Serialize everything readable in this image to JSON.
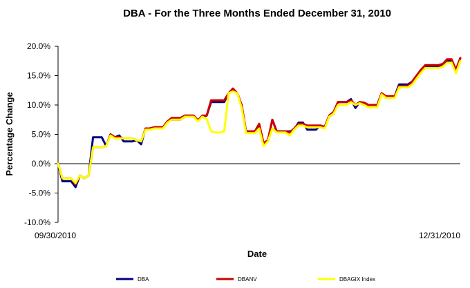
{
  "chart_data": {
    "type": "line",
    "title": "DBA - For the Three Months Ended December 31, 2010",
    "xlabel": "Date",
    "ylabel": "Percentage Change",
    "x_tick_labels": [
      "09/30/2010",
      "12/31/2010"
    ],
    "y_tick_labels": [
      "20.0%",
      "15.0%",
      "10.0%",
      "5.0%",
      "0.0%",
      "-5.0%",
      "-10.0%"
    ],
    "ylim": [
      -10,
      20
    ],
    "y_ticks": [
      20,
      15,
      10,
      5,
      0,
      -5,
      -10
    ],
    "grid": false,
    "legend": "bottom",
    "series": [
      {
        "name": "DBA",
        "color": "#000080",
        "values": [
          0.0,
          -3.0,
          -3.0,
          -3.0,
          -4.0,
          -2.0,
          -2.5,
          -2.0,
          4.5,
          4.5,
          4.5,
          3.0,
          5.0,
          4.5,
          4.8,
          3.8,
          3.8,
          3.8,
          4.0,
          3.3,
          6.0,
          6.0,
          6.2,
          6.2,
          6.2,
          7.2,
          7.5,
          7.5,
          7.5,
          8.0,
          8.0,
          8.0,
          7.4,
          8.0,
          8.2,
          10.5,
          10.5,
          10.5,
          10.5,
          12.0,
          12.5,
          12.0,
          9.8,
          5.5,
          5.5,
          5.5,
          6.5,
          3.5,
          4.0,
          7.5,
          5.5,
          5.5,
          5.5,
          5.5,
          5.8,
          7.0,
          7.0,
          5.8,
          5.8,
          5.8,
          6.5,
          6.2,
          8.0,
          8.5,
          10.5,
          10.5,
          10.5,
          11.0,
          9.5,
          10.5,
          10.3,
          10.0,
          10.0,
          10.0,
          12.0,
          11.2,
          11.2,
          11.5,
          13.5,
          13.5,
          13.5,
          14.0,
          15.0,
          16.0,
          16.5,
          16.5,
          16.5,
          16.5,
          17.0,
          17.5,
          17.5,
          16.0,
          18.0
        ]
      },
      {
        "name": "DBANV",
        "color": "#cc0000",
        "values": [
          0.0,
          -2.5,
          -2.5,
          -2.5,
          -3.5,
          -2.0,
          -2.5,
          -2.0,
          2.8,
          2.8,
          2.8,
          3.0,
          5.0,
          4.5,
          4.5,
          4.3,
          4.3,
          4.3,
          4.0,
          3.8,
          6.0,
          6.0,
          6.2,
          6.2,
          6.2,
          7.2,
          7.8,
          7.8,
          7.8,
          8.2,
          8.2,
          8.2,
          7.4,
          8.2,
          8.2,
          10.8,
          10.8,
          10.8,
          10.8,
          12.0,
          12.8,
          12.0,
          10.0,
          5.5,
          5.5,
          5.5,
          6.8,
          3.5,
          4.0,
          7.5,
          5.5,
          5.5,
          5.5,
          5.3,
          6.0,
          6.8,
          6.8,
          6.5,
          6.5,
          6.5,
          6.5,
          6.3,
          8.2,
          8.8,
          10.5,
          10.5,
          10.5,
          10.8,
          10.0,
          10.5,
          10.4,
          10.0,
          10.0,
          10.0,
          12.0,
          11.5,
          11.5,
          11.5,
          13.2,
          13.2,
          13.2,
          14.0,
          15.0,
          16.0,
          16.8,
          16.8,
          16.8,
          16.8,
          17.0,
          17.8,
          17.8,
          16.0,
          18.0
        ]
      },
      {
        "name": "DBAGIX Index",
        "color": "#ffff00",
        "values": [
          0.0,
          -2.5,
          -2.5,
          -2.5,
          -3.3,
          -2.0,
          -2.5,
          -2.0,
          2.8,
          2.8,
          2.8,
          3.0,
          4.8,
          4.3,
          4.3,
          4.3,
          4.3,
          4.3,
          4.0,
          3.8,
          5.8,
          5.8,
          6.0,
          6.0,
          6.0,
          7.0,
          7.5,
          7.5,
          7.5,
          8.0,
          8.0,
          8.0,
          7.2,
          8.0,
          7.6,
          5.5,
          5.3,
          5.3,
          5.5,
          12.0,
          12.3,
          12.0,
          9.5,
          5.2,
          5.2,
          5.2,
          6.0,
          3.0,
          3.8,
          6.0,
          5.3,
          5.3,
          5.3,
          4.8,
          5.8,
          6.5,
          6.5,
          6.2,
          6.2,
          6.2,
          6.2,
          6.0,
          8.0,
          8.5,
          10.0,
          10.0,
          10.0,
          10.5,
          10.0,
          10.3,
          10.0,
          9.6,
          9.6,
          9.6,
          11.8,
          11.2,
          11.2,
          11.2,
          13.0,
          13.0,
          13.0,
          13.5,
          14.5,
          15.5,
          16.3,
          16.3,
          16.3,
          16.3,
          16.5,
          17.2,
          17.2,
          15.4,
          17.5
        ]
      }
    ]
  }
}
